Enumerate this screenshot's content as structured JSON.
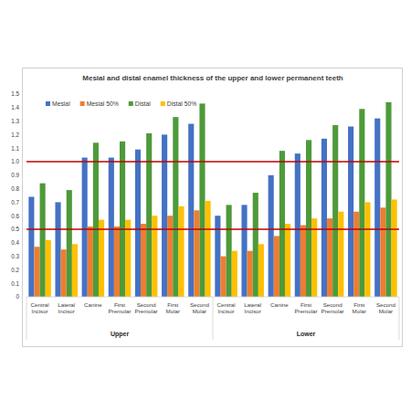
{
  "chart_data": {
    "type": "bar",
    "title": "Mesial and distal enamel thickness of the upper and lower permanent teeth",
    "categories": [
      "Central Incisor",
      "Lateral Incisor",
      "Canine",
      "First Premolar",
      "Second Premolar",
      "First Molar",
      "Second Molar",
      "Central Incisor",
      "Lateral Incisor",
      "Canine",
      "First Premolar",
      "Second Premolar",
      "First Molar",
      "Second Molar"
    ],
    "groups": [
      {
        "name": "Upper",
        "size": 7
      },
      {
        "name": "Lower",
        "size": 7
      }
    ],
    "series": [
      {
        "name": "Mesial",
        "color": "#4472c4",
        "values": [
          0.74,
          0.7,
          1.03,
          1.03,
          1.09,
          1.2,
          1.28,
          0.6,
          0.68,
          0.9,
          1.06,
          1.17,
          1.26,
          1.32
        ]
      },
      {
        "name": "Mesial 50%",
        "color": "#ed7d31",
        "values": [
          0.37,
          0.35,
          0.52,
          0.52,
          0.54,
          0.6,
          0.64,
          0.3,
          0.34,
          0.45,
          0.53,
          0.58,
          0.63,
          0.66
        ]
      },
      {
        "name": "Distal",
        "color": "#4e9a3a",
        "values": [
          0.84,
          0.79,
          1.14,
          1.15,
          1.21,
          1.33,
          1.43,
          0.68,
          0.77,
          1.08,
          1.16,
          1.27,
          1.39,
          1.44
        ]
      },
      {
        "name": "Distal 50%",
        "color": "#ffc000",
        "values": [
          0.42,
          0.39,
          0.57,
          0.57,
          0.6,
          0.67,
          0.71,
          0.34,
          0.39,
          0.54,
          0.58,
          0.63,
          0.7,
          0.72
        ]
      }
    ],
    "reference_lines": [
      {
        "value": 1,
        "color": "#c00000"
      },
      {
        "value": 0.5,
        "color": "#c00000"
      }
    ],
    "ylim": [
      0,
      1.5
    ],
    "yticks": [
      0,
      0.1,
      0.2,
      0.3,
      0.4,
      0.5,
      0.6,
      0.7,
      0.8,
      0.9,
      {
        "value": 1,
        "label": "1.0"
      },
      1.1,
      1.2,
      1.3,
      1.4,
      1.5
    ],
    "grid": false,
    "legend": "top-left"
  }
}
